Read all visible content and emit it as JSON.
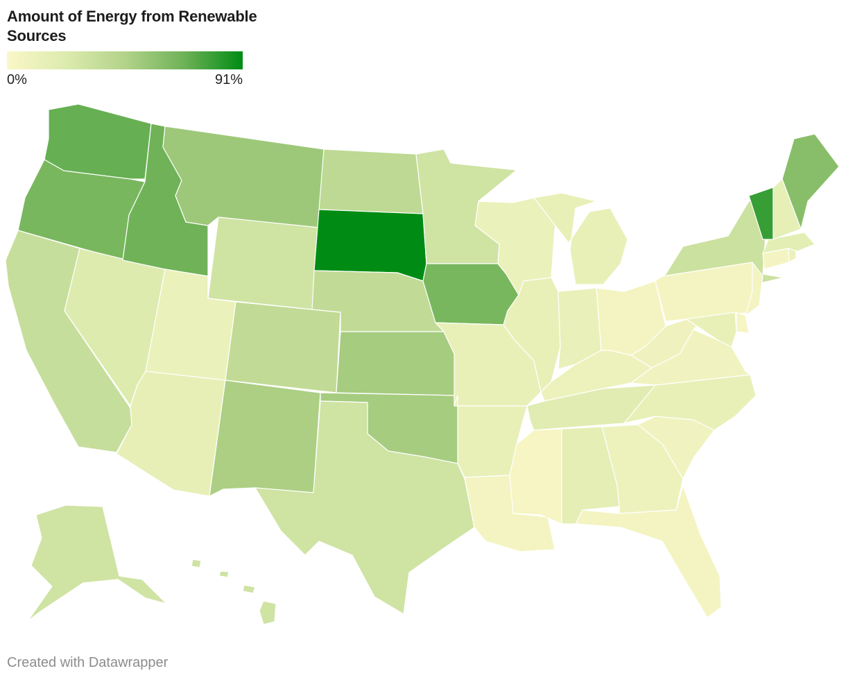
{
  "title": "Amount of Energy from Renewable Sources",
  "legend": {
    "min_label": "0%",
    "max_label": "91%",
    "min_value": 0,
    "max_value": 91,
    "color_min": "#fbf7c8",
    "color_max": "#008c14"
  },
  "credit": "Created with Datawrapper",
  "states": [
    {
      "code": "WA",
      "value": 70
    },
    {
      "code": "OR",
      "value": 65
    },
    {
      "code": "CA",
      "value": 35
    },
    {
      "code": "NV",
      "value": 22
    },
    {
      "code": "ID",
      "value": 68
    },
    {
      "code": "MT",
      "value": 53
    },
    {
      "code": "WY",
      "value": 30
    },
    {
      "code": "UT",
      "value": 12
    },
    {
      "code": "AZ",
      "value": 15
    },
    {
      "code": "CO",
      "value": 38
    },
    {
      "code": "NM",
      "value": 48
    },
    {
      "code": "ND",
      "value": 40
    },
    {
      "code": "SD",
      "value": 91
    },
    {
      "code": "NE",
      "value": 38
    },
    {
      "code": "KS",
      "value": 50
    },
    {
      "code": "OK",
      "value": 50
    },
    {
      "code": "TX",
      "value": 30
    },
    {
      "code": "MN",
      "value": 30
    },
    {
      "code": "IA",
      "value": 65
    },
    {
      "code": "MO",
      "value": 14
    },
    {
      "code": "AR",
      "value": 14
    },
    {
      "code": "LA",
      "value": 6
    },
    {
      "code": "WI",
      "value": 12
    },
    {
      "code": "IL",
      "value": 14
    },
    {
      "code": "MI",
      "value": 14
    },
    {
      "code": "IN",
      "value": 13
    },
    {
      "code": "OH",
      "value": 5
    },
    {
      "code": "KY",
      "value": 10
    },
    {
      "code": "TN",
      "value": 20
    },
    {
      "code": "MS",
      "value": 4
    },
    {
      "code": "AL",
      "value": 17
    },
    {
      "code": "GA",
      "value": 10
    },
    {
      "code": "FL",
      "value": 6
    },
    {
      "code": "SC",
      "value": 8
    },
    {
      "code": "NC",
      "value": 14
    },
    {
      "code": "VA",
      "value": 8
    },
    {
      "code": "WV",
      "value": 9
    },
    {
      "code": "PA",
      "value": 5
    },
    {
      "code": "NY",
      "value": 32
    },
    {
      "code": "NJ",
      "value": 6
    },
    {
      "code": "DE",
      "value": 4
    },
    {
      "code": "MD",
      "value": 14
    },
    {
      "code": "CT",
      "value": 5
    },
    {
      "code": "RI",
      "value": 12
    },
    {
      "code": "MA",
      "value": 18
    },
    {
      "code": "VT",
      "value": 80
    },
    {
      "code": "NH",
      "value": 16
    },
    {
      "code": "ME",
      "value": 60
    },
    {
      "code": "AK",
      "value": 30
    },
    {
      "code": "HI",
      "value": 30
    }
  ]
}
